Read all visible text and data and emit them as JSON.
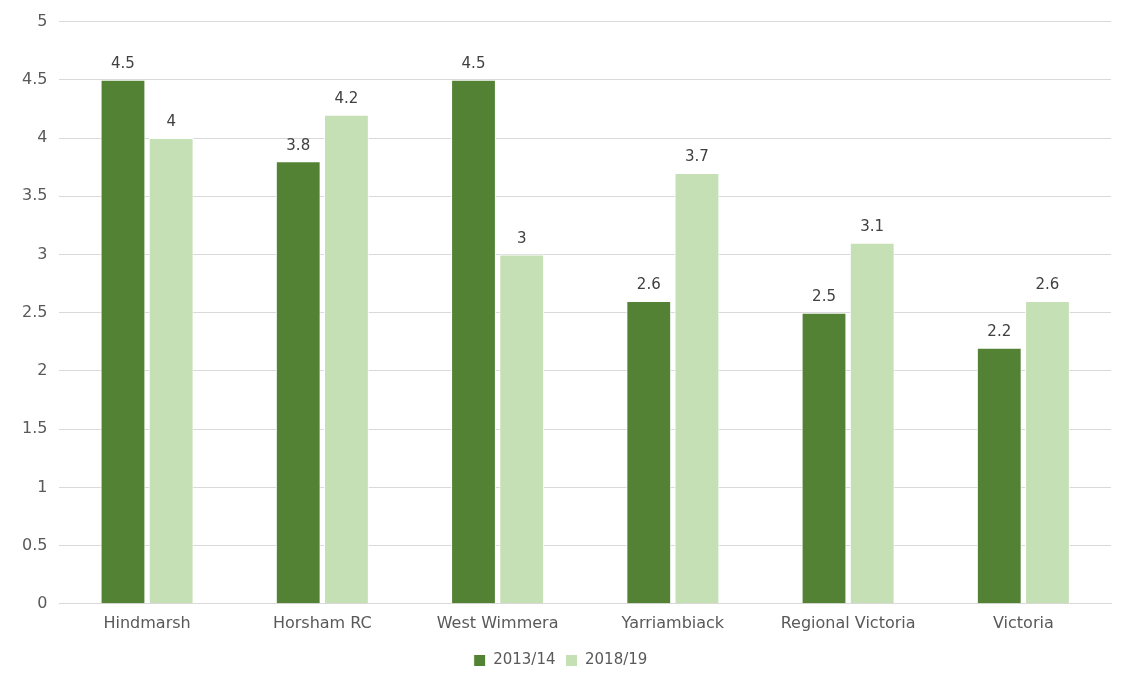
{
  "chart_data": {
    "type": "bar",
    "categories": [
      "Hindmarsh",
      "Horsham RC",
      "West Wimmera",
      "Yarriambiack",
      "Regional Victoria",
      "Victoria"
    ],
    "series": [
      {
        "name": "2013/14",
        "color": "#548235",
        "values": [
          4.5,
          3.8,
          4.5,
          2.6,
          2.5,
          2.2
        ]
      },
      {
        "name": "2018/19",
        "color": "#c5e0b4",
        "values": [
          4,
          4.2,
          3,
          3.7,
          3.1,
          2.6
        ]
      }
    ],
    "ylim": [
      0,
      5
    ],
    "yticks": [
      0,
      0.5,
      1,
      1.5,
      2,
      2.5,
      3,
      3.5,
      4,
      4.5,
      5
    ],
    "grid": "y",
    "legend": "bottom",
    "data_labels": true
  }
}
